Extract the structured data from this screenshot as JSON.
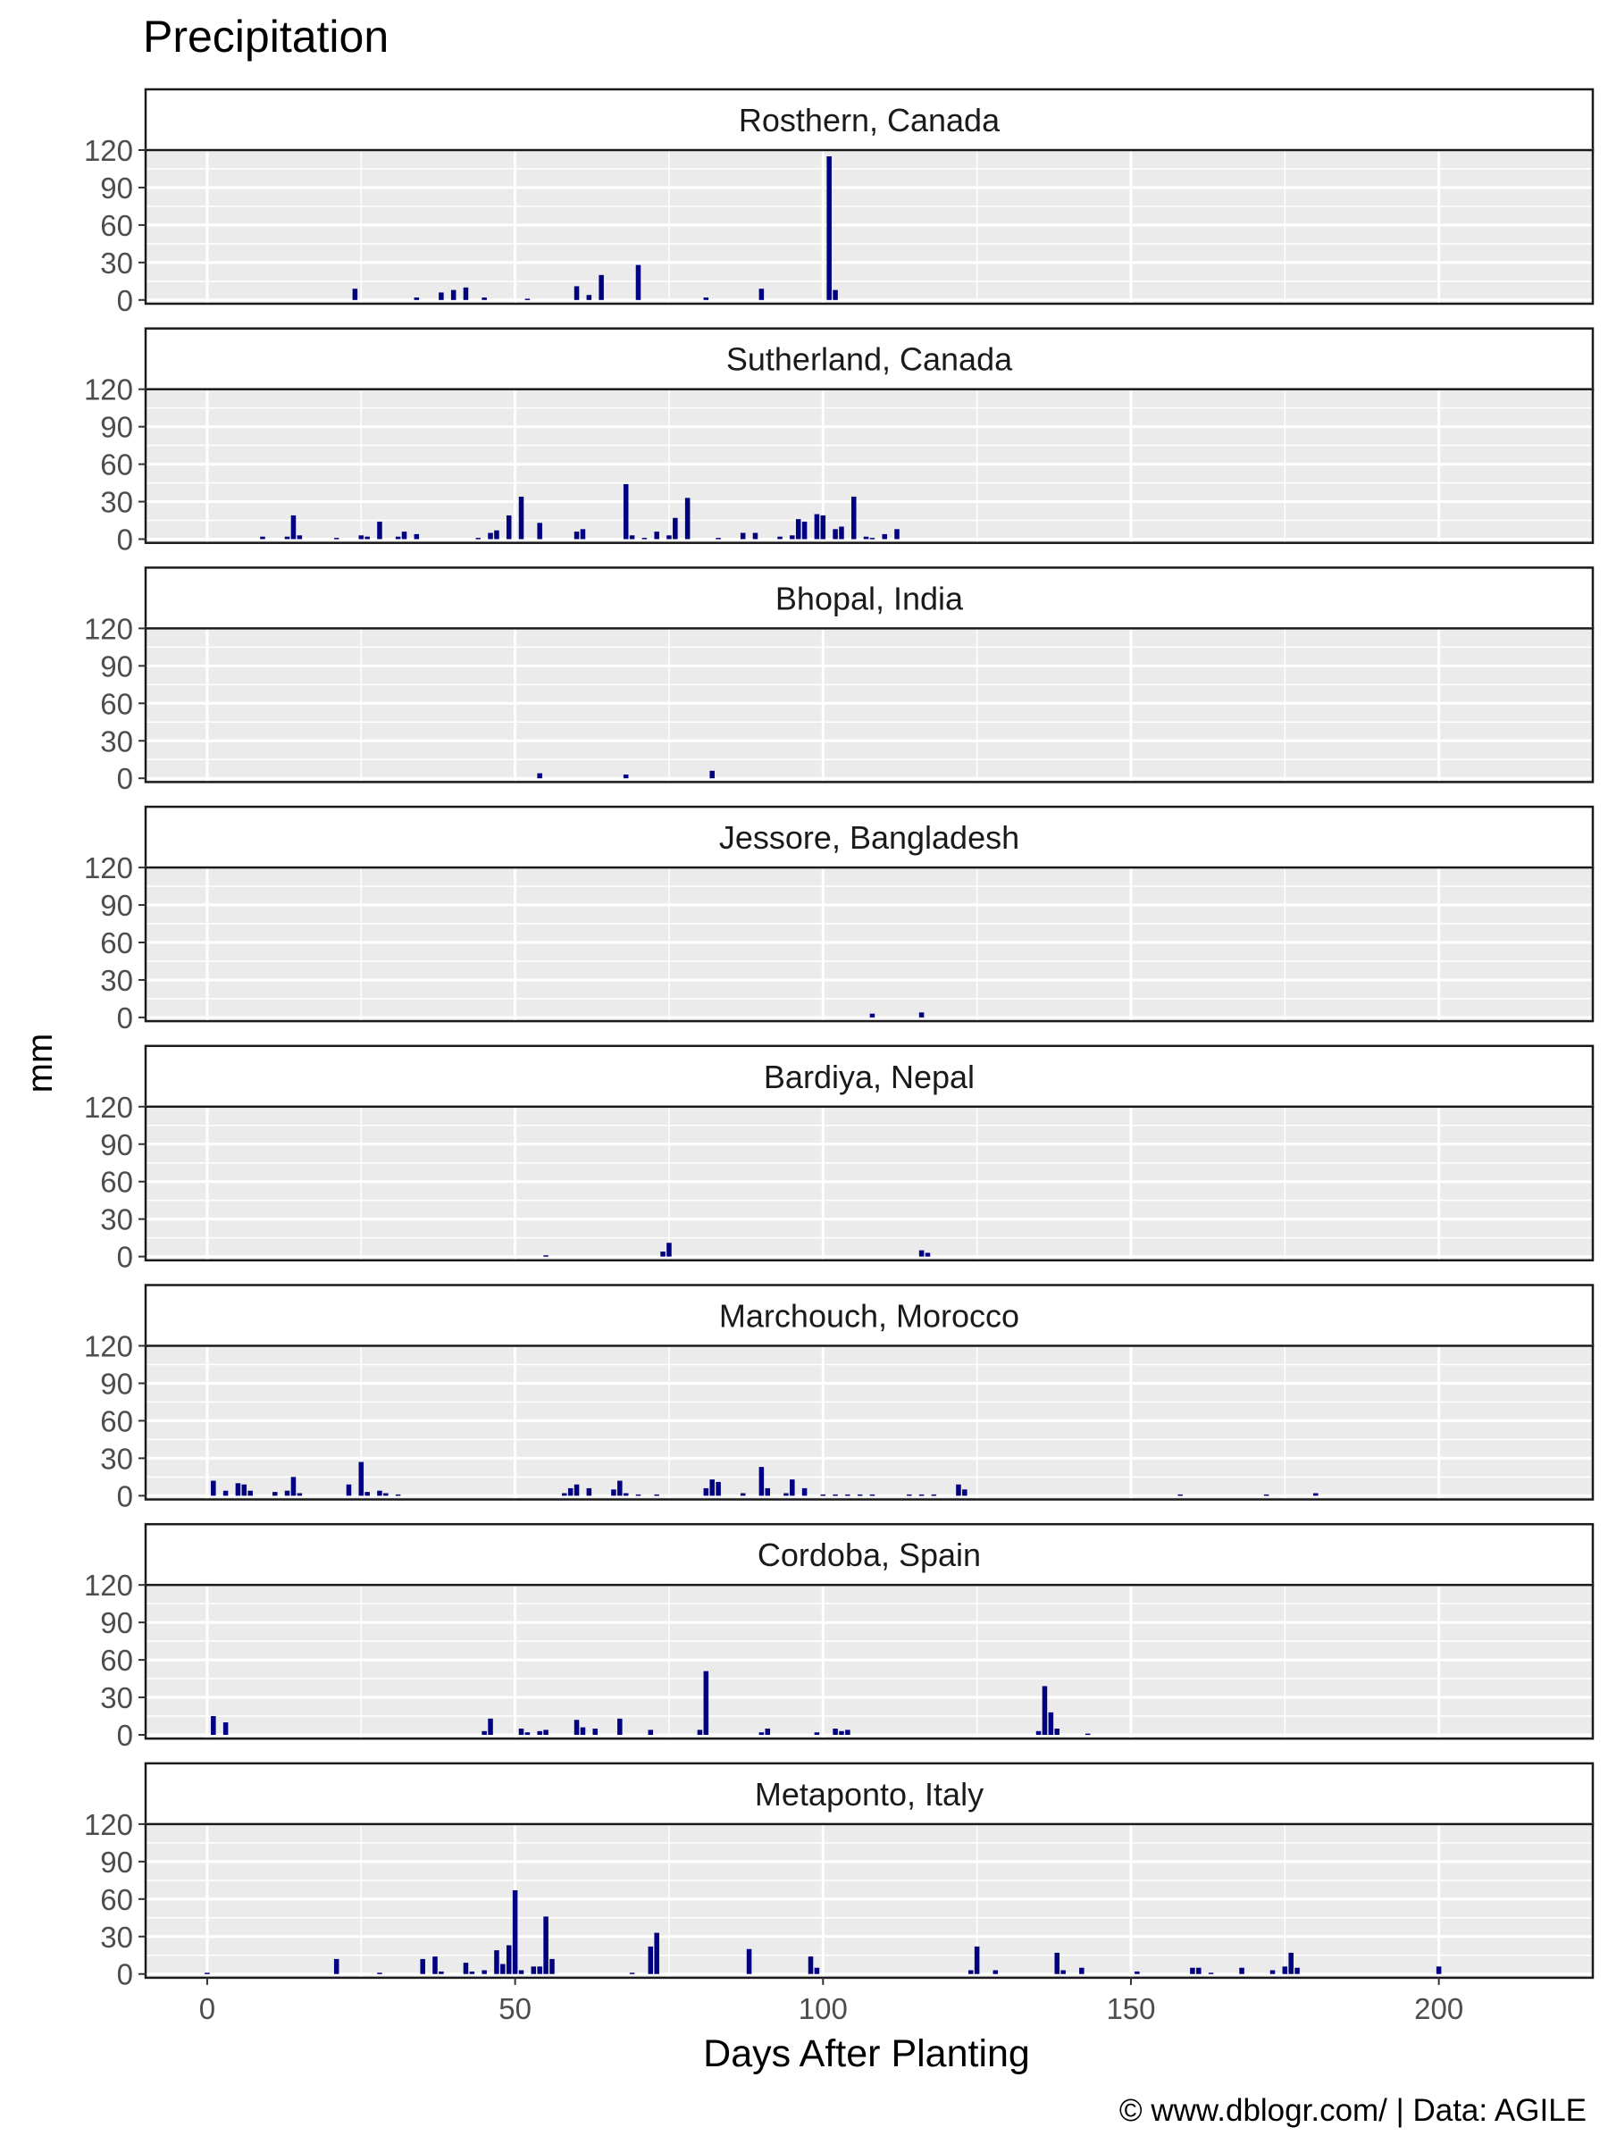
{
  "chart_data": {
    "type": "bar",
    "title": "Precipitation",
    "xlabel": "Days After Planting",
    "ylabel": "mm",
    "caption": "© www.dblogr.com/  |  Data: AGILE",
    "xlim": [
      -10,
      225
    ],
    "ylim": [
      -3,
      120
    ],
    "x_ticks": [
      0,
      50,
      100,
      150,
      200
    ],
    "y_ticks": [
      0,
      30,
      60,
      90,
      120
    ],
    "bar_width_days": 0.8,
    "bar_color": "#000080",
    "panel_background": "#ebebeb",
    "grid": true,
    "panels": [
      {
        "name": "Rosthern, Canada",
        "x": [
          24,
          34,
          38,
          40,
          42,
          45,
          52,
          60,
          62,
          64,
          70,
          81,
          90,
          101,
          102
        ],
        "values": [
          9,
          2,
          6,
          8,
          10,
          2,
          1,
          11,
          4,
          20,
          28,
          2,
          9,
          115,
          8
        ]
      },
      {
        "name": "Sutherland, Canada",
        "x": [
          9,
          13,
          14,
          15,
          21,
          25,
          26,
          28,
          31,
          32,
          34,
          44,
          46,
          47,
          49,
          51,
          54,
          60,
          61,
          68,
          69,
          71,
          73,
          75,
          76,
          78,
          83,
          87,
          89,
          93,
          95,
          96,
          97,
          99,
          100,
          102,
          103,
          105,
          107,
          108,
          110,
          112
        ],
        "values": [
          2,
          2,
          19,
          3,
          1,
          3,
          2,
          14,
          2,
          6,
          4,
          1,
          5,
          7,
          19,
          34,
          13,
          6,
          8,
          44,
          3,
          1,
          6,
          3,
          17,
          33,
          1,
          5,
          5,
          2,
          3,
          16,
          14,
          20,
          19,
          8,
          10,
          34,
          2,
          1,
          4,
          8
        ]
      },
      {
        "name": "Bhopal, India",
        "x": [
          54,
          68,
          82
        ],
        "values": [
          4,
          3,
          6
        ]
      },
      {
        "name": "Jessore, Bangladesh",
        "x": [
          108,
          116
        ],
        "values": [
          3,
          4
        ]
      },
      {
        "name": "Bardiya, Nepal",
        "x": [
          55,
          74,
          75,
          116,
          117
        ],
        "values": [
          1,
          4,
          11,
          5,
          3
        ]
      },
      {
        "name": "Marchouch, Morocco",
        "x": [
          1,
          3,
          5,
          6,
          7,
          11,
          13,
          14,
          15,
          23,
          25,
          26,
          28,
          29,
          31,
          58,
          59,
          60,
          62,
          66,
          67,
          68,
          70,
          73,
          81,
          82,
          83,
          87,
          90,
          91,
          94,
          95,
          97,
          100,
          102,
          104,
          106,
          108,
          114,
          116,
          118,
          122,
          123,
          158,
          172,
          180
        ],
        "values": [
          12,
          4,
          10,
          9,
          4,
          3,
          4,
          15,
          2,
          9,
          27,
          3,
          4,
          2,
          1,
          2,
          6,
          9,
          6,
          5,
          12,
          2,
          1,
          1,
          6,
          13,
          11,
          2,
          23,
          6,
          2,
          13,
          6,
          1,
          1,
          1,
          1,
          1,
          1,
          1,
          1,
          9,
          5,
          1,
          1,
          2
        ]
      },
      {
        "name": "Cordoba, Spain",
        "x": [
          1,
          3,
          45,
          46,
          51,
          52,
          54,
          55,
          60,
          61,
          63,
          67,
          72,
          80,
          81,
          90,
          91,
          99,
          102,
          103,
          104,
          135,
          136,
          137,
          138,
          143
        ],
        "values": [
          15,
          10,
          3,
          13,
          5,
          2,
          3,
          4,
          12,
          6,
          5,
          13,
          4,
          4,
          51,
          2,
          5,
          2,
          5,
          3,
          4,
          3,
          39,
          18,
          5,
          1
        ]
      },
      {
        "name": "Metaponto, Italy",
        "x": [
          0,
          21,
          28,
          35,
          37,
          38,
          42,
          43,
          45,
          47,
          48,
          49,
          50,
          51,
          53,
          54,
          55,
          56,
          69,
          72,
          73,
          88,
          98,
          99,
          124,
          125,
          128,
          138,
          139,
          142,
          151,
          160,
          161,
          163,
          168,
          173,
          175,
          176,
          177,
          200
        ],
        "values": [
          1,
          12,
          1,
          12,
          14,
          2,
          9,
          2,
          3,
          19,
          8,
          23,
          67,
          3,
          6,
          6,
          46,
          12,
          1,
          22,
          33,
          20,
          14,
          5,
          3,
          22,
          3,
          17,
          3,
          5,
          2,
          5,
          5,
          1,
          5,
          3,
          6,
          17,
          5,
          6
        ]
      }
    ]
  }
}
